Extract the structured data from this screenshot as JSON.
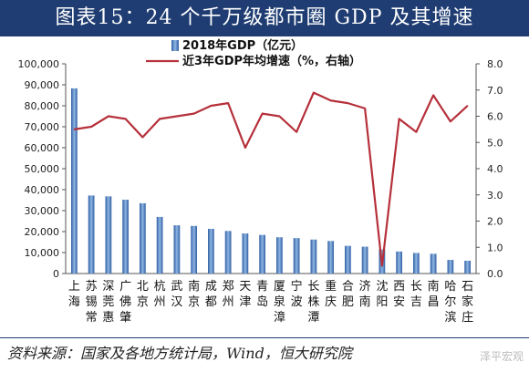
{
  "header": {
    "title": "图表15：24 个千万级都市圈 GDP 及其增速"
  },
  "footer": {
    "source": "资料来源：国家及各地方统计局，Wind，恒大研究院",
    "watermark": "泽平宏观"
  },
  "colors": {
    "title_bg": "#1f3d72",
    "bar": "#4a7fc1",
    "line": "#b5303a"
  },
  "chart_data": {
    "type": "bar",
    "categories": [
      "上海",
      "苏锡常",
      "深莞惠",
      "广佛肇",
      "北京",
      "杭州",
      "武汉",
      "南京",
      "成都",
      "郑州",
      "天津",
      "青岛",
      "厦泉漳",
      "宁波",
      "长株潭",
      "重庆",
      "合肥",
      "济南",
      "沈阳",
      "西安",
      "长吉",
      "南昌",
      "哈尔滨",
      "石家庄"
    ],
    "category_lines": [
      [
        "上",
        "海"
      ],
      [
        "苏",
        "锡",
        "常"
      ],
      [
        "深",
        "莞",
        "惠"
      ],
      [
        "广",
        "佛",
        "肇"
      ],
      [
        "北",
        "京"
      ],
      [
        "杭",
        "州"
      ],
      [
        "武",
        "汉"
      ],
      [
        "南",
        "京"
      ],
      [
        "成",
        "都"
      ],
      [
        "郑",
        "州"
      ],
      [
        "天",
        "津"
      ],
      [
        "青",
        "岛"
      ],
      [
        "厦",
        "泉",
        "漳"
      ],
      [
        "宁",
        "波"
      ],
      [
        "长",
        "株",
        "潭"
      ],
      [
        "重",
        "庆"
      ],
      [
        "合",
        "肥"
      ],
      [
        "济",
        "南"
      ],
      [
        "沈",
        "阳"
      ],
      [
        "西",
        "安"
      ],
      [
        "长",
        "吉"
      ],
      [
        "南",
        "昌"
      ],
      [
        "哈",
        "尔",
        "滨"
      ],
      [
        "石",
        "家",
        "庄"
      ]
    ],
    "series": [
      {
        "name": "2018年GDP（亿元）",
        "axis": "left",
        "kind": "bar",
        "values": [
          88300,
          37200,
          36800,
          35200,
          33500,
          27000,
          23000,
          22700,
          21300,
          20300,
          19100,
          18400,
          17300,
          16900,
          16200,
          15500,
          13200,
          12800,
          11500,
          10500,
          9800,
          9400,
          6500,
          6100
        ]
      },
      {
        "name": "近3年GDP年均增速（%，右轴）",
        "axis": "right",
        "kind": "line",
        "values": [
          5.5,
          5.6,
          6.0,
          5.9,
          5.2,
          5.9,
          6.0,
          6.1,
          6.4,
          6.5,
          4.8,
          6.1,
          6.0,
          5.4,
          6.9,
          6.6,
          6.5,
          6.3,
          0.3,
          5.9,
          5.4,
          6.8,
          5.8,
          6.4
        ]
      }
    ],
    "y_left": {
      "min": 0,
      "max": 100000,
      "ticks": [
        "0",
        "10,000",
        "20,000",
        "30,000",
        "40,000",
        "50,000",
        "60,000",
        "70,000",
        "80,000",
        "90,000",
        "100,000"
      ]
    },
    "y_right": {
      "min": 0,
      "max": 8,
      "ticks": [
        "0.0",
        "1.0",
        "2.0",
        "3.0",
        "4.0",
        "5.0",
        "6.0",
        "7.0",
        "8.0"
      ]
    },
    "legend": {
      "placement": "top-center",
      "bar_label": "2018年GDP（亿元）",
      "line_label": "近3年GDP年均增速（%，右轴）"
    },
    "grid": false
  }
}
